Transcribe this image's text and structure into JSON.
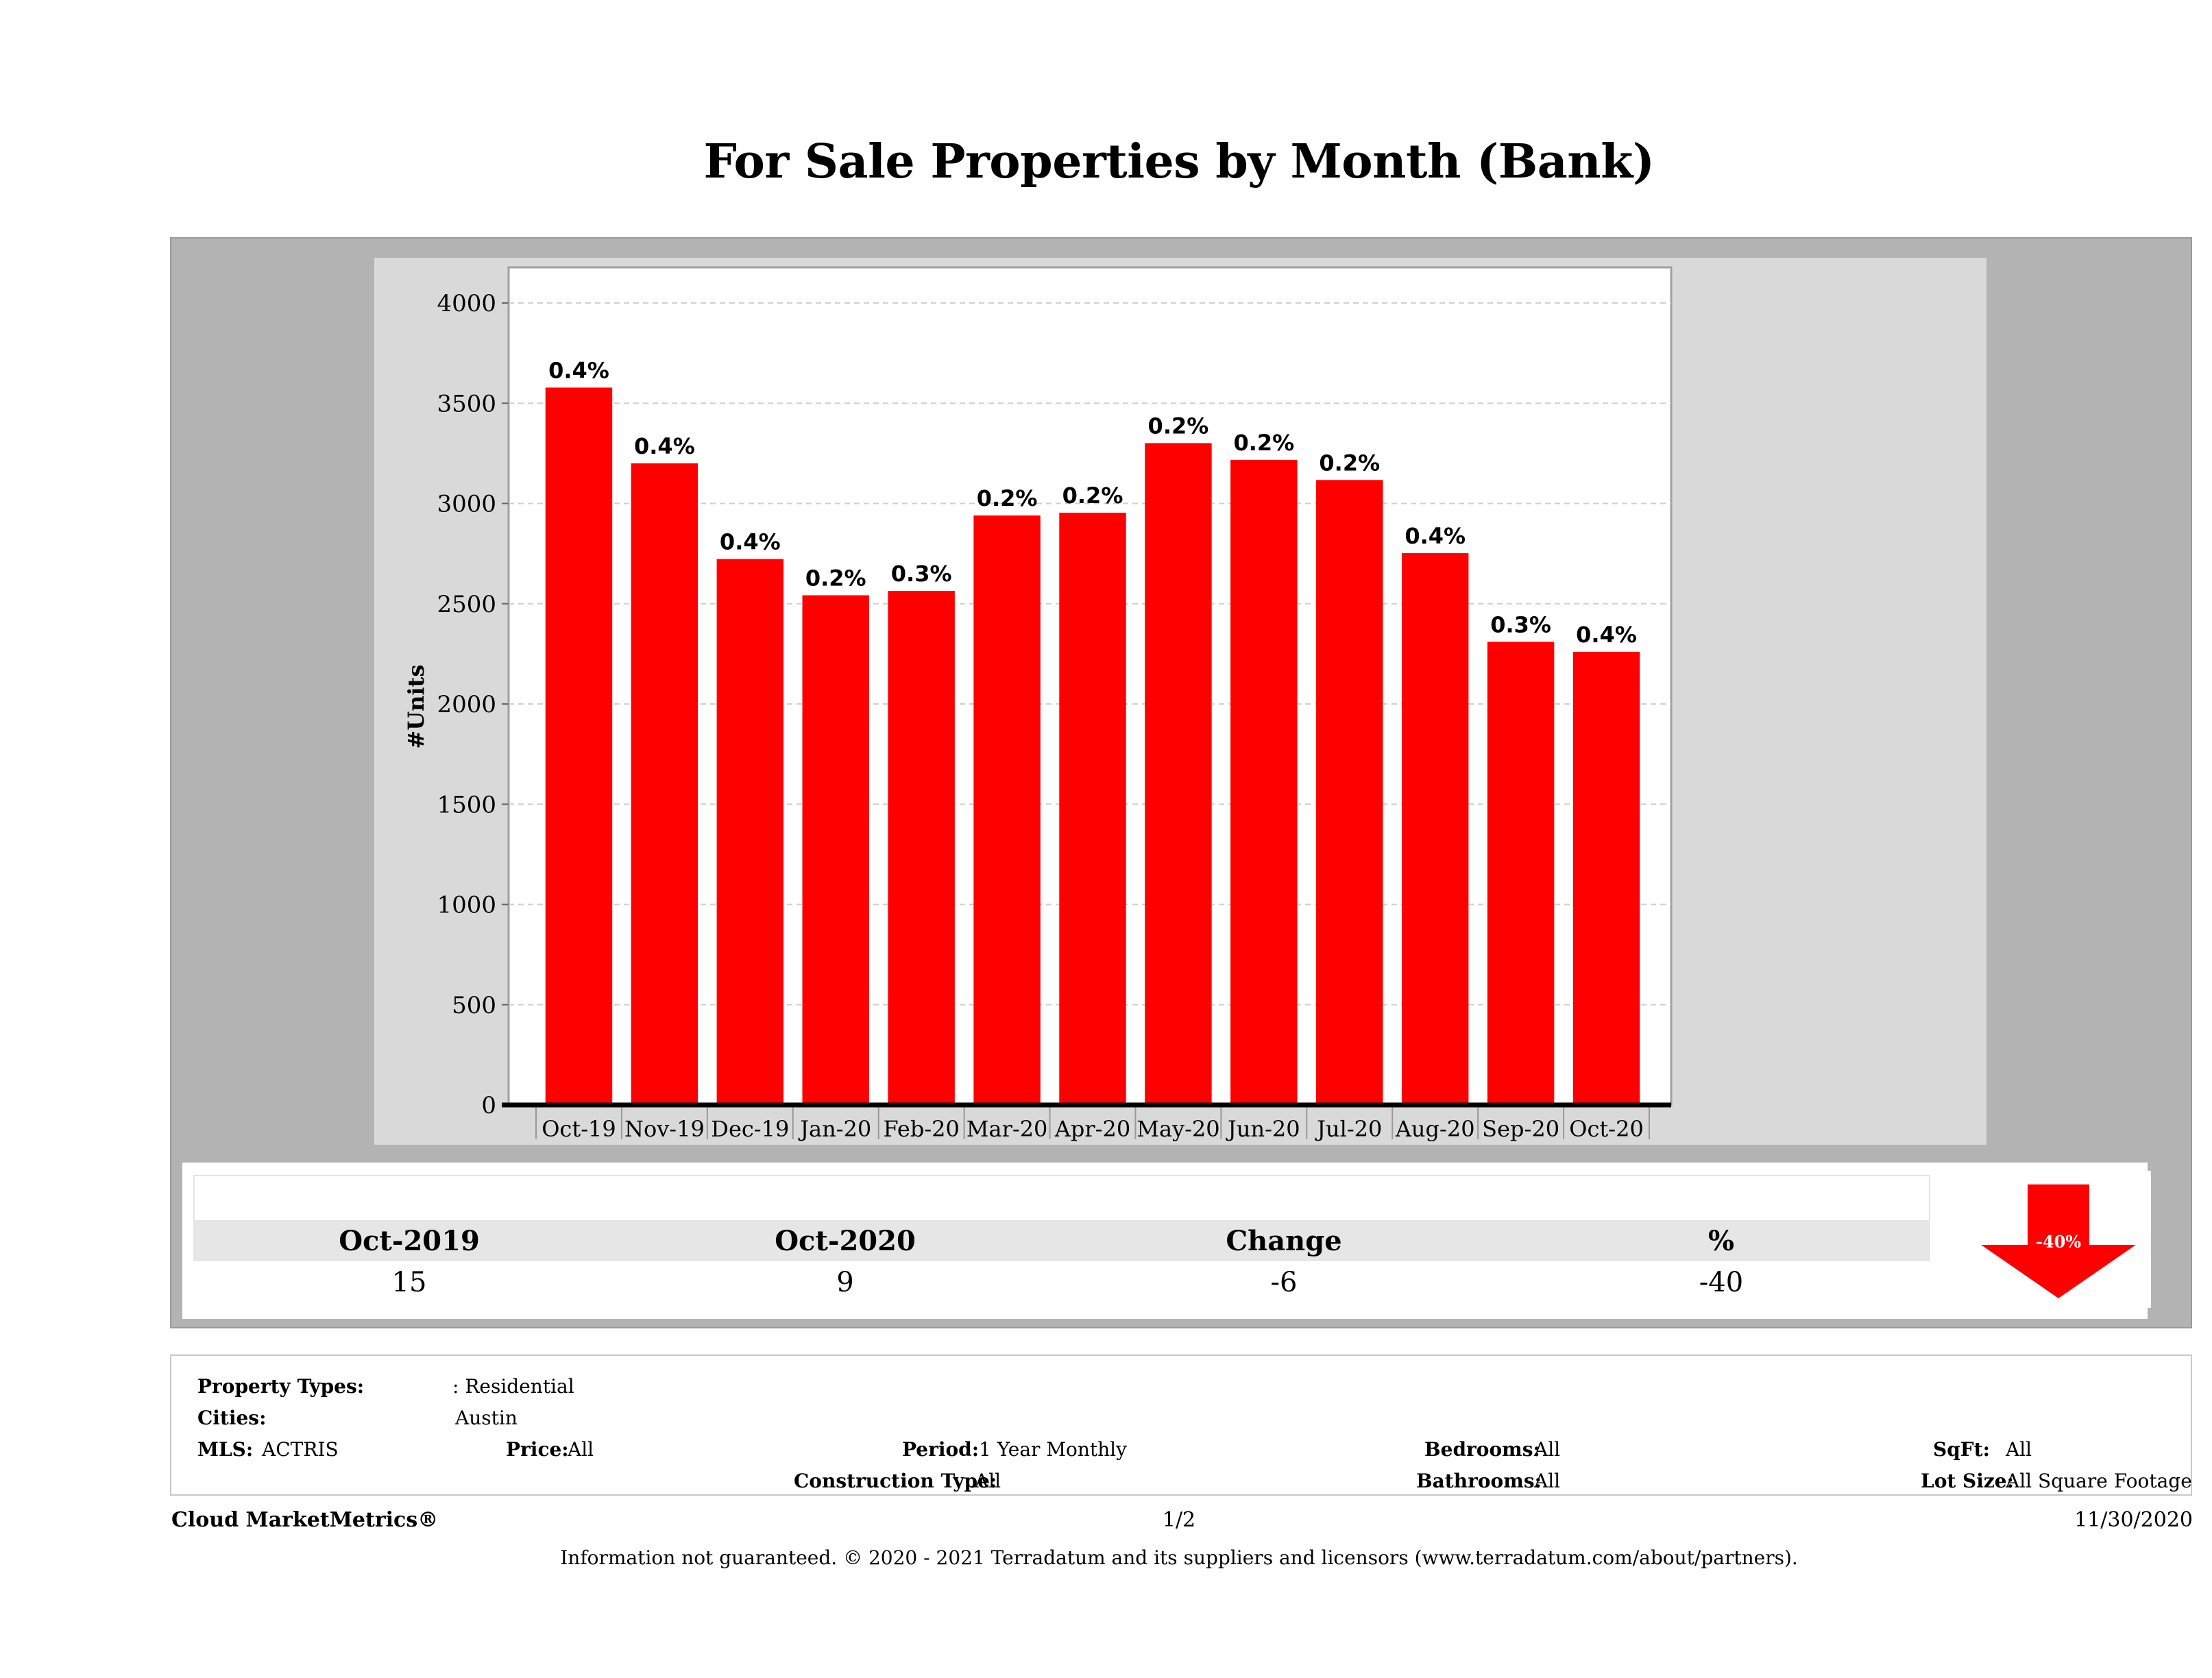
{
  "title": "For Sale Properties by Month (Bank)",
  "chart_data": {
    "type": "bar",
    "title": "For Sale Properties by Month (Bank)",
    "ylabel": "#Units",
    "xlabel": "",
    "ylim": [
      0,
      4000
    ],
    "yticks": [
      0,
      500,
      1000,
      1500,
      2000,
      2500,
      3000,
      3500,
      4000
    ],
    "grid": true,
    "categories": [
      "Oct-19",
      "Nov-19",
      "Dec-19",
      "Jan-20",
      "Feb-20",
      "Mar-20",
      "Apr-20",
      "May-20",
      "Jun-20",
      "Jul-20",
      "Aug-20",
      "Sep-20",
      "Oct-20"
    ],
    "series": [
      {
        "values": [
          3578,
          3200,
          2723,
          2542,
          2564,
          2940,
          2954,
          3301,
          3217,
          3117,
          2752,
          2310,
          2260
        ],
        "color": "#ff0000"
      }
    ],
    "data_labels": [
      "0.4%",
      "0.4%",
      "0.4%",
      "0.2%",
      "0.3%",
      "0.2%",
      "0.2%",
      "0.2%",
      "0.2%",
      "0.2%",
      "0.4%",
      "0.3%",
      "0.4%"
    ]
  },
  "summary": {
    "headers": [
      "Oct-2019",
      "Oct-2020",
      "Change",
      "%"
    ],
    "values": [
      "15",
      "9",
      "-6",
      "-40"
    ],
    "badge": "-40%",
    "badge_color": "#ff0000"
  },
  "filters": {
    "property_types_label": "Property Types:",
    "property_types_value": ": Residential",
    "cities_label": "Cities:",
    "cities_value": "Austin",
    "mls_label": "MLS:",
    "mls_value": "ACTRIS",
    "price_label": "Price:",
    "price_value": "All",
    "period_label": "Period:",
    "period_value": "1 Year Monthly",
    "construction_label": "Construction Type:",
    "construction_value": "All",
    "bedrooms_label": "Bedrooms:",
    "bedrooms_value": "All",
    "bathrooms_label": "Bathrooms:",
    "bathrooms_value": "All",
    "sqft_label": "SqFt:",
    "sqft_value": "All",
    "lotsize_label": "Lot Size:",
    "lotsize_value": "All Square Footage"
  },
  "footer": {
    "brand": "Cloud MarketMetrics®",
    "page": "1/2",
    "date": "11/30/2020",
    "disclaimer": "Information not guaranteed. © 2020 - 2021 Terradatum and its suppliers and licensors (www.terradatum.com/about/partners)."
  }
}
